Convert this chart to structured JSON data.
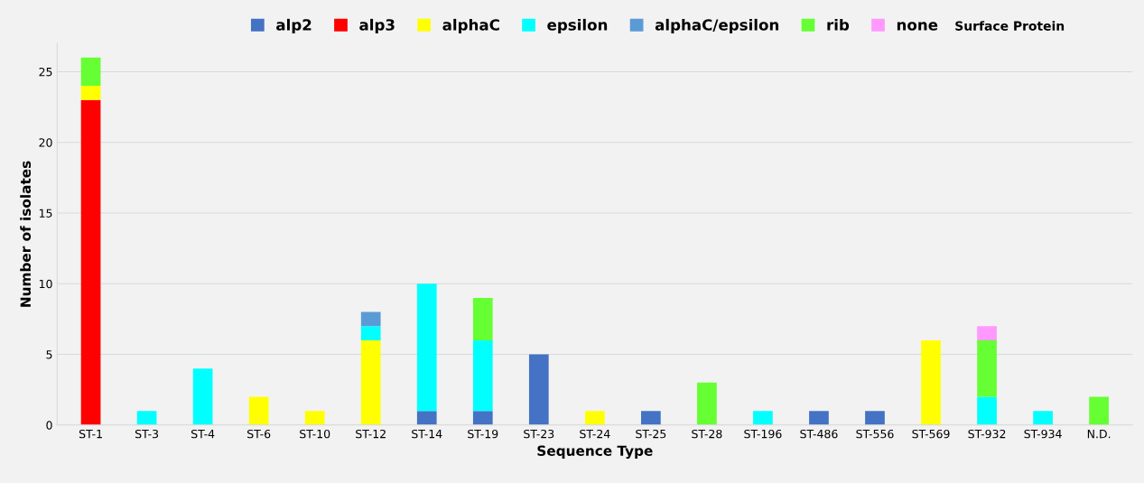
{
  "chart_data": {
    "type": "bar",
    "stacked": true,
    "xlabel": "Sequence Type",
    "ylabel": "Number of isolates",
    "legend_title": "Surface Protein",
    "legend": "top",
    "grid": "y",
    "ylim": [
      0,
      27
    ],
    "yticks": [
      0,
      5,
      10,
      15,
      20,
      25
    ],
    "categories": [
      "ST-1",
      "ST-3",
      "ST-4",
      "ST-6",
      "ST-10",
      "ST-12",
      "ST-14",
      "ST-19",
      "ST-23",
      "ST-24",
      "ST-25",
      "ST-28",
      "ST-196",
      "ST-486",
      "ST-556",
      "ST-569",
      "ST-932",
      "ST-934",
      "N.D."
    ],
    "series": [
      {
        "name": "alp2",
        "color": "#4472c4",
        "values": [
          null,
          null,
          null,
          null,
          null,
          null,
          1,
          1,
          5,
          null,
          1,
          null,
          null,
          1,
          1,
          null,
          null,
          null,
          null
        ]
      },
      {
        "name": "alp3",
        "color": "#ff0000",
        "values": [
          23,
          null,
          null,
          null,
          null,
          null,
          null,
          null,
          null,
          null,
          null,
          null,
          null,
          null,
          null,
          null,
          null,
          null,
          null
        ]
      },
      {
        "name": "alphaC",
        "color": "#ffff00",
        "values": [
          1,
          null,
          null,
          2,
          1,
          6,
          null,
          null,
          null,
          1,
          null,
          null,
          null,
          null,
          null,
          6,
          null,
          null,
          null
        ]
      },
      {
        "name": "epsilon",
        "color": "#00ffff",
        "values": [
          null,
          1,
          4,
          null,
          null,
          1,
          9,
          5,
          null,
          null,
          null,
          null,
          1,
          null,
          null,
          null,
          2,
          1,
          null
        ]
      },
      {
        "name": "alphaC/epsilon",
        "color": "#5b9bd5",
        "values": [
          null,
          null,
          null,
          null,
          null,
          1,
          null,
          null,
          null,
          null,
          null,
          null,
          null,
          null,
          null,
          null,
          null,
          null,
          null
        ]
      },
      {
        "name": "rib",
        "color": "#66ff33",
        "values": [
          2,
          null,
          null,
          null,
          null,
          null,
          null,
          3,
          null,
          null,
          null,
          3,
          null,
          null,
          null,
          null,
          4,
          null,
          2
        ]
      },
      {
        "name": "none",
        "color": "#ff99ff",
        "values": [
          null,
          null,
          null,
          null,
          null,
          null,
          null,
          null,
          null,
          null,
          null,
          null,
          null,
          null,
          null,
          null,
          1,
          null,
          null
        ]
      }
    ]
  }
}
